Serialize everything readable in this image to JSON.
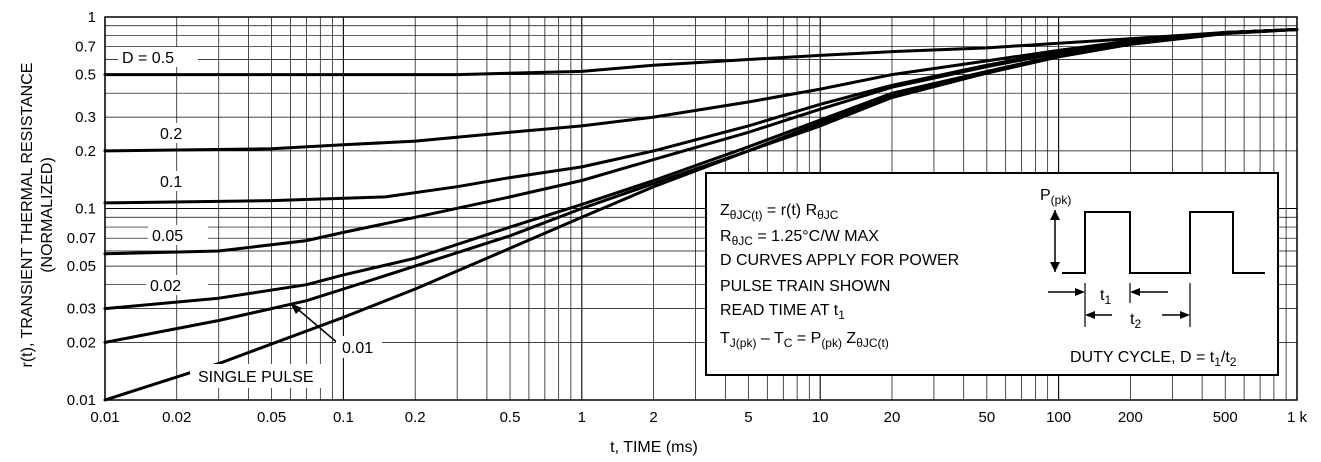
{
  "chart_data": {
    "type": "line",
    "xlabel": "t, TIME (ms)",
    "ylabel": [
      "r(t), TRANSIENT THERMAL RESISTANCE",
      "(NORMALIZED)"
    ],
    "xscale": "log",
    "yscale": "log",
    "xlim": [
      0.01,
      1000
    ],
    "ylim": [
      0.01,
      1
    ],
    "grid": true,
    "x_ticks": [
      {
        "v": 0.01,
        "label": "0.01"
      },
      {
        "v": 0.02,
        "label": "0.02"
      },
      {
        "v": 0.05,
        "label": "0.05"
      },
      {
        "v": 0.1,
        "label": "0.1"
      },
      {
        "v": 0.2,
        "label": "0.2"
      },
      {
        "v": 0.5,
        "label": "0.5"
      },
      {
        "v": 1,
        "label": "1"
      },
      {
        "v": 2,
        "label": "2"
      },
      {
        "v": 5,
        "label": "5"
      },
      {
        "v": 10,
        "label": "10"
      },
      {
        "v": 20,
        "label": "20"
      },
      {
        "v": 50,
        "label": "50"
      },
      {
        "v": 100,
        "label": "100"
      },
      {
        "v": 200,
        "label": "200"
      },
      {
        "v": 500,
        "label": "500"
      },
      {
        "v": 1000,
        "label": "1 k"
      }
    ],
    "y_ticks": [
      {
        "v": 1,
        "label": "1"
      },
      {
        "v": 0.7,
        "label": "0.7"
      },
      {
        "v": 0.5,
        "label": "0.5"
      },
      {
        "v": 0.3,
        "label": "0.3"
      },
      {
        "v": 0.2,
        "label": "0.2"
      },
      {
        "v": 0.1,
        "label": "0.1"
      },
      {
        "v": 0.07,
        "label": "0.07"
      },
      {
        "v": 0.05,
        "label": "0.05"
      },
      {
        "v": 0.03,
        "label": "0.03"
      },
      {
        "v": 0.02,
        "label": "0.02"
      },
      {
        "v": 0.01,
        "label": "0.01"
      }
    ],
    "series": [
      {
        "name": "D = 0.5",
        "points": [
          [
            0.01,
            0.5
          ],
          [
            0.1,
            0.5
          ],
          [
            0.3,
            0.5
          ],
          [
            1,
            0.52
          ],
          [
            2,
            0.56
          ],
          [
            5,
            0.6
          ],
          [
            10,
            0.63
          ],
          [
            20,
            0.66
          ],
          [
            50,
            0.69
          ],
          [
            100,
            0.73
          ],
          [
            200,
            0.77
          ],
          [
            500,
            0.83
          ],
          [
            1000,
            0.86
          ]
        ]
      },
      {
        "name": "0.2",
        "points": [
          [
            0.01,
            0.2
          ],
          [
            0.05,
            0.205
          ],
          [
            0.1,
            0.215
          ],
          [
            0.2,
            0.225
          ],
          [
            0.5,
            0.25
          ],
          [
            1,
            0.27
          ],
          [
            2,
            0.3
          ],
          [
            5,
            0.36
          ],
          [
            10,
            0.42
          ],
          [
            20,
            0.5
          ],
          [
            50,
            0.59
          ],
          [
            100,
            0.67
          ],
          [
            200,
            0.75
          ],
          [
            500,
            0.83
          ],
          [
            1000,
            0.86
          ]
        ]
      },
      {
        "name": "0.1",
        "points": [
          [
            0.01,
            0.107
          ],
          [
            0.05,
            0.11
          ],
          [
            0.15,
            0.115
          ],
          [
            0.3,
            0.13
          ],
          [
            0.5,
            0.145
          ],
          [
            1,
            0.165
          ],
          [
            2,
            0.2
          ],
          [
            5,
            0.27
          ],
          [
            10,
            0.35
          ],
          [
            20,
            0.44
          ],
          [
            50,
            0.56
          ],
          [
            100,
            0.66
          ],
          [
            200,
            0.74
          ],
          [
            500,
            0.83
          ],
          [
            1000,
            0.86
          ]
        ]
      },
      {
        "name": "0.05",
        "points": [
          [
            0.01,
            0.058
          ],
          [
            0.03,
            0.06
          ],
          [
            0.07,
            0.068
          ],
          [
            0.1,
            0.075
          ],
          [
            0.2,
            0.09
          ],
          [
            0.5,
            0.115
          ],
          [
            1,
            0.14
          ],
          [
            2,
            0.18
          ],
          [
            5,
            0.25
          ],
          [
            10,
            0.33
          ],
          [
            20,
            0.43
          ],
          [
            50,
            0.55
          ],
          [
            100,
            0.65
          ],
          [
            200,
            0.74
          ],
          [
            500,
            0.83
          ],
          [
            1000,
            0.86
          ]
        ]
      },
      {
        "name": "0.02",
        "points": [
          [
            0.01,
            0.03
          ],
          [
            0.03,
            0.034
          ],
          [
            0.07,
            0.04
          ],
          [
            0.1,
            0.045
          ],
          [
            0.2,
            0.055
          ],
          [
            0.5,
            0.08
          ],
          [
            1,
            0.105
          ],
          [
            2,
            0.14
          ],
          [
            5,
            0.21
          ],
          [
            10,
            0.29
          ],
          [
            20,
            0.4
          ],
          [
            50,
            0.52
          ],
          [
            100,
            0.63
          ],
          [
            200,
            0.73
          ],
          [
            500,
            0.83
          ],
          [
            1000,
            0.86
          ]
        ]
      },
      {
        "name": "0.01",
        "points": [
          [
            0.01,
            0.02
          ],
          [
            0.03,
            0.026
          ],
          [
            0.07,
            0.033
          ],
          [
            0.1,
            0.038
          ],
          [
            0.2,
            0.05
          ],
          [
            0.5,
            0.072
          ],
          [
            1,
            0.1
          ],
          [
            2,
            0.135
          ],
          [
            5,
            0.2
          ],
          [
            10,
            0.28
          ],
          [
            20,
            0.39
          ],
          [
            50,
            0.51
          ],
          [
            100,
            0.62
          ],
          [
            200,
            0.72
          ],
          [
            500,
            0.82
          ],
          [
            1000,
            0.86
          ]
        ]
      },
      {
        "name": "SINGLE PULSE",
        "points": [
          [
            0.01,
            0.01
          ],
          [
            0.03,
            0.0155
          ],
          [
            0.1,
            0.027
          ],
          [
            0.2,
            0.038
          ],
          [
            0.5,
            0.062
          ],
          [
            1,
            0.09
          ],
          [
            2,
            0.13
          ],
          [
            5,
            0.2
          ],
          [
            10,
            0.27
          ],
          [
            20,
            0.38
          ],
          [
            50,
            0.51
          ],
          [
            100,
            0.62
          ],
          [
            200,
            0.72
          ],
          [
            500,
            0.82
          ],
          [
            1000,
            0.86
          ]
        ]
      }
    ],
    "annotations": {
      "formulas": [
        "ZθJC(t) = r(t) RθJC",
        "RθJC = 1.25°C/W MAX",
        "D CURVES APPLY FOR POWER",
        "PULSE TRAIN SHOWN",
        "READ TIME AT t1",
        "TJ(pk) – TC = P(pk) ZθJC(t)"
      ],
      "pulse_labels": {
        "p": "P(pk)",
        "t1": "t1",
        "t2": "t2",
        "duty": "DUTY CYCLE, D = t1/t2"
      }
    }
  }
}
